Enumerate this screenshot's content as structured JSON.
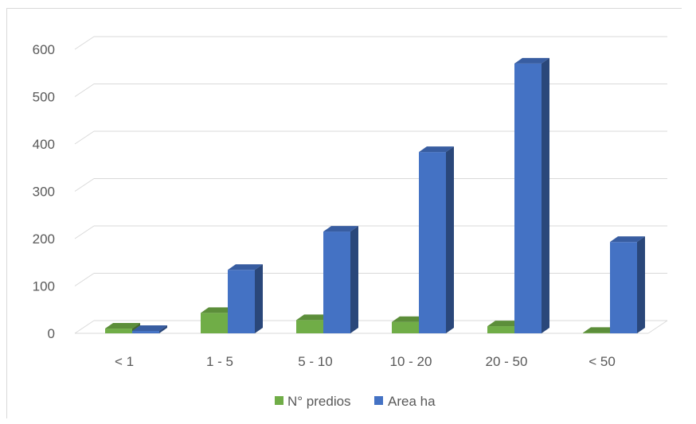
{
  "chart_data": {
    "type": "bar",
    "categories": [
      "< 1",
      "1 - 5",
      "5 - 10",
      "10 - 20",
      "20 - 50",
      "< 50"
    ],
    "series": [
      {
        "name": "N° predios",
        "values": [
          10,
          43,
          28,
          24,
          15,
          1
        ],
        "color": "#70ad47"
      },
      {
        "name": "Area ha",
        "values": [
          5,
          134,
          215,
          383,
          570,
          193
        ],
        "color": "#4472c4"
      }
    ],
    "ylim": [
      0,
      600
    ],
    "yticks": [
      "0",
      "100",
      "200",
      "300",
      "400",
      "500",
      "600"
    ],
    "grid": true,
    "legend_position": "bottom",
    "style": "3d-clustered-column"
  }
}
